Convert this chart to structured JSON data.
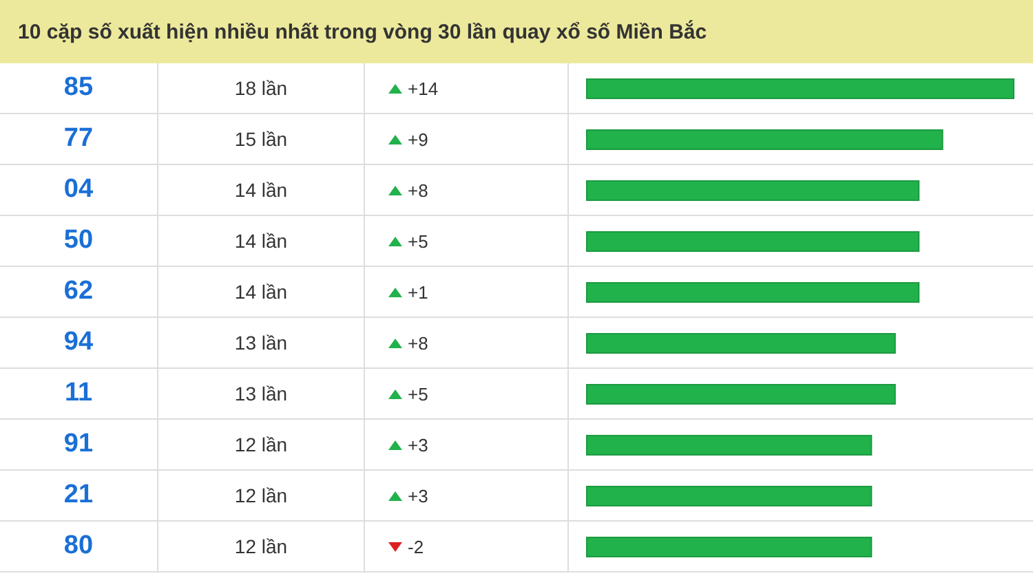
{
  "chart_data": {
    "type": "bar",
    "orientation": "horizontal",
    "title": "10 cặp số xuất hiện nhiều nhất trong vòng 30 lần quay xổ số Miền Bắc",
    "categories": [
      "85",
      "77",
      "04",
      "50",
      "62",
      "94",
      "11",
      "91",
      "21",
      "80"
    ],
    "values": [
      18,
      15,
      14,
      14,
      14,
      13,
      13,
      12,
      12,
      12
    ],
    "value_labels": [
      "18 lần",
      "15 lần",
      "14 lần",
      "14 lần",
      "14 lần",
      "13 lần",
      "13 lần",
      "12 lần",
      "12 lần",
      "12 lần"
    ],
    "annotations": [
      "+14",
      "+9",
      "+8",
      "+5",
      "+1",
      "+8",
      "+5",
      "+3",
      "+3",
      "-2"
    ],
    "color": "#21b24b"
  }
}
